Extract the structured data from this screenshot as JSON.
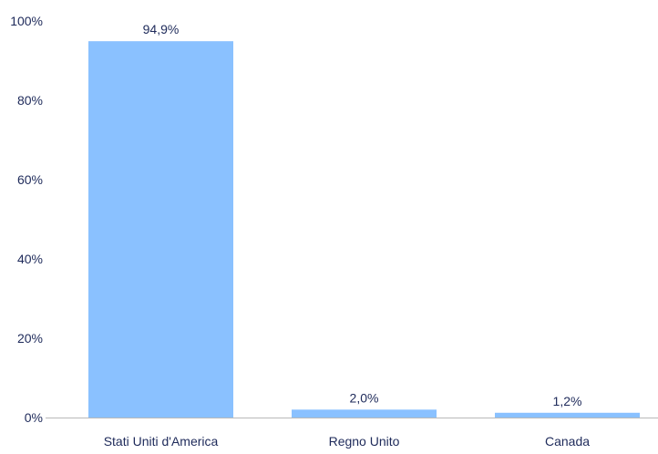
{
  "chart_data": {
    "type": "bar",
    "title": "",
    "xlabel": "",
    "ylabel": "",
    "categories": [
      "Stati Uniti d'America",
      "Regno Unito",
      "Canada"
    ],
    "values": [
      94.9,
      2.0,
      1.2
    ],
    "value_labels": [
      "94,9%",
      "2,0%",
      "1,2%"
    ],
    "ylim": [
      0,
      100
    ],
    "yticks": [
      0,
      20,
      40,
      60,
      80,
      100
    ],
    "ytick_labels": [
      "0%",
      "20%",
      "40%",
      "60%",
      "80%",
      "100%"
    ],
    "grid": false,
    "legend": "none",
    "colors": {
      "bar": "#8ac1ff",
      "text": "#1e2a5a",
      "axis": "#b8b8b8"
    }
  }
}
